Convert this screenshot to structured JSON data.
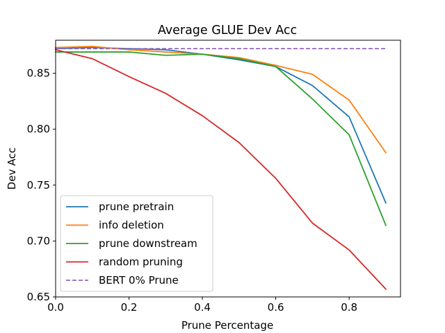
{
  "chart_data": {
    "type": "line",
    "title": "Average GLUE Dev Acc",
    "xlabel": "Prune Percentage",
    "ylabel": "Dev Acc",
    "xlim": [
      0.0,
      0.94
    ],
    "ylim": [
      0.65,
      0.8795
    ],
    "x_ticks": [
      0.0,
      0.2,
      0.4,
      0.6,
      0.8
    ],
    "x_tick_labels": [
      "0.0",
      "0.2",
      "0.4",
      "0.6",
      "0.8"
    ],
    "y_ticks": [
      0.65,
      0.7,
      0.75,
      0.8,
      0.85
    ],
    "y_tick_labels": [
      "0.65",
      "0.70",
      "0.75",
      "0.80",
      "0.85"
    ],
    "grid": false,
    "legend_position": "lower-left",
    "x": [
      0.0,
      0.1,
      0.2,
      0.3,
      0.4,
      0.5,
      0.6,
      0.7,
      0.8,
      0.9
    ],
    "series": [
      {
        "name": "prune pretrain",
        "color": "#1f77b4",
        "style": "solid",
        "values": [
          0.872,
          0.873,
          0.872,
          0.871,
          0.867,
          0.862,
          0.856,
          0.839,
          0.811,
          0.734
        ]
      },
      {
        "name": "info deletion",
        "color": "#ff7f0e",
        "style": "solid",
        "values": [
          0.873,
          0.874,
          0.871,
          0.869,
          0.867,
          0.864,
          0.857,
          0.849,
          0.826,
          0.779
        ]
      },
      {
        "name": "prune downstream",
        "color": "#2ca02c",
        "style": "solid",
        "values": [
          0.869,
          0.869,
          0.869,
          0.866,
          0.867,
          0.863,
          0.856,
          0.827,
          0.795,
          0.714
        ]
      },
      {
        "name": "random pruning",
        "color": "#d62728",
        "style": "solid",
        "values": [
          0.871,
          0.863,
          0.847,
          0.832,
          0.812,
          0.788,
          0.756,
          0.716,
          0.692,
          0.657
        ]
      },
      {
        "name": "BERT 0% Prune",
        "color": "#9467bd",
        "style": "dashed",
        "values": [
          0.872,
          0.872,
          0.872,
          0.872,
          0.872,
          0.872,
          0.872,
          0.872,
          0.872,
          0.872
        ]
      }
    ]
  }
}
